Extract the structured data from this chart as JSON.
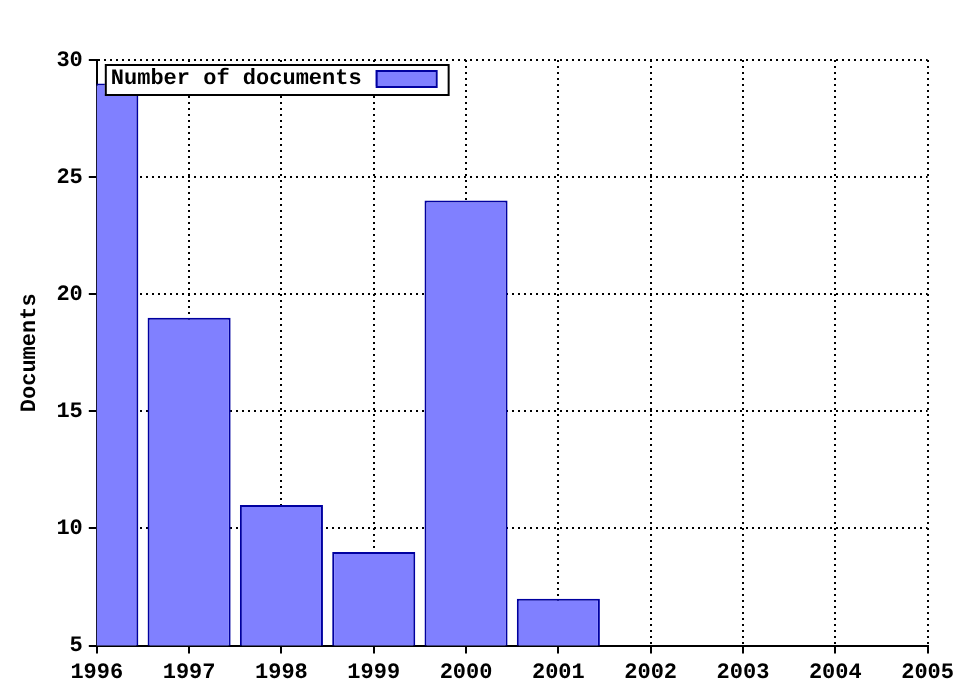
{
  "chart_data": {
    "type": "bar",
    "ylabel": "Documents",
    "x": [
      1996,
      1997,
      1998,
      1999,
      2000,
      2001
    ],
    "series": [
      {
        "name": "Number of documents",
        "color": "#8080ff",
        "values": [
          29,
          19,
          11,
          9,
          24,
          7
        ]
      }
    ],
    "xlim": [
      1996,
      2005
    ],
    "xticks": [
      1996,
      1997,
      1998,
      1999,
      2000,
      2001,
      2002,
      2003,
      2004,
      2005
    ],
    "ylim": [
      5,
      30
    ],
    "yticks": [
      5,
      10,
      15,
      20,
      25,
      30
    ],
    "grid": true,
    "legend": "top left"
  }
}
